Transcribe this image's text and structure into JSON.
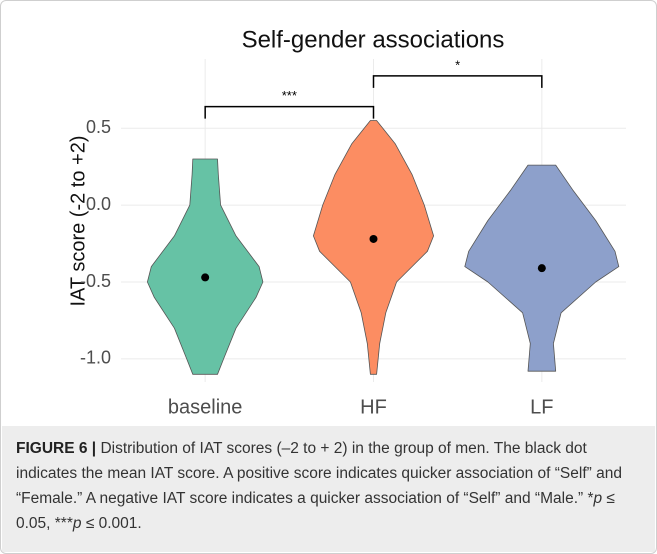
{
  "chart_data": {
    "type": "violin",
    "title": "Self-gender associations",
    "ylabel": "IAT score (-2 to +2)",
    "categories": [
      "baseline",
      "HF",
      "LF"
    ],
    "series": [
      {
        "name": "baseline",
        "color": "#66c2a5",
        "mean": -0.47,
        "density": {
          "y": [
            0.3,
            0.2,
            0.0,
            -0.2,
            -0.4,
            -0.5,
            -0.6,
            -0.8,
            -1.0,
            -1.1
          ],
          "width": [
            0.16,
            0.17,
            0.2,
            0.4,
            0.7,
            0.75,
            0.66,
            0.4,
            0.24,
            0.16
          ]
        }
      },
      {
        "name": "HF",
        "color": "#fc8d62",
        "mean": -0.22,
        "density": {
          "y": [
            0.55,
            0.4,
            0.2,
            0.0,
            -0.2,
            -0.3,
            -0.5,
            -0.7,
            -0.9,
            -1.1
          ],
          "width": [
            0.04,
            0.28,
            0.5,
            0.66,
            0.78,
            0.7,
            0.3,
            0.16,
            0.08,
            0.04
          ]
        }
      },
      {
        "name": "LF",
        "color": "#8da0cb",
        "mean": -0.41,
        "density": {
          "y": [
            0.26,
            0.1,
            -0.1,
            -0.3,
            -0.4,
            -0.5,
            -0.7,
            -0.9,
            -1.08
          ],
          "width": [
            0.18,
            0.4,
            0.7,
            0.95,
            1.0,
            0.7,
            0.25,
            0.15,
            0.18
          ]
        }
      }
    ],
    "ylim": [
      -1.15,
      0.95
    ],
    "yticks": [
      0.5,
      {
        "value": 0,
        "label": "0.0"
      },
      -0.5,
      {
        "value": -1,
        "label": "-1.0"
      }
    ],
    "grid": true,
    "annotations": [
      {
        "text": "***",
        "between": [
          "baseline",
          "HF"
        ],
        "y": 0.64
      },
      {
        "text": "*",
        "between": [
          "HF",
          "LF"
        ],
        "y": 0.84
      }
    ]
  },
  "caption": {
    "label": "FIGURE 6 |",
    "parts": [
      "Distribution of IAT scores (–2 to + 2) in the group of men. The black dot indicates the mean IAT score. A positive score indicates quicker association of “Self” and “Female.” A negative IAT score indicates a quicker association of “Self” and “Male.” *",
      "p",
      " ≤ 0.05, ***",
      "p",
      " ≤ 0.001."
    ]
  }
}
